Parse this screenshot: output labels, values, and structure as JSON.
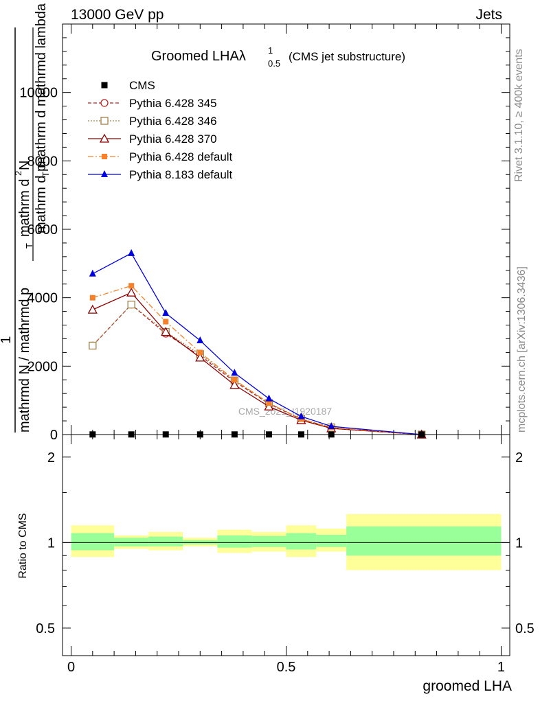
{
  "header": {
    "left": "13000 GeV pp",
    "right": "Jets"
  },
  "side": {
    "rivet": "Rivet 3.1.10, ≥ 400k events",
    "mcplots": "mcplots.cern.ch [arXiv:1306.3436]"
  },
  "plot": {
    "title_main": "Groomed LHAλ",
    "title_sup": "1",
    "title_sub": "0.5",
    "title_paren": "(CMS jet substructure)",
    "watermark": "CMS_2021_I1920187",
    "ylabel_num_top": "1",
    "ylabel_den_top": "mathrmd N / mathrmd p",
    "ylabel_den_top_sub": "T",
    "ylabel_num_bottom": "mathrm d",
    "ylabel_num_bottom_sup": "2",
    "ylabel_num_bottom_rest": "N",
    "ylabel_den_bottom": "mathrm d p",
    "ylabel_den_bottom_sub": "T",
    "ylabel_den_bottom_rest": "mathrm d mathrmd lambda",
    "ratio_ylabel": "Ratio to CMS",
    "xlabel": "groomed LHA"
  },
  "chart_data": {
    "type": "line",
    "xlim": [
      -0.02,
      1.02
    ],
    "ylim": [
      0,
      12000
    ],
    "yticks": [
      0,
      2000,
      4000,
      6000,
      8000,
      10000
    ],
    "ytick_labels": [
      "0",
      "2000",
      "4000",
      "6000",
      "8000",
      "10000"
    ],
    "x": [
      0.05,
      0.14,
      0.22,
      0.3,
      0.38,
      0.46,
      0.535,
      0.605,
      0.815
    ],
    "data": {
      "name": "CMS",
      "color": "#000000",
      "values": [
        4,
        4,
        4,
        4,
        4,
        4,
        4,
        4,
        0
      ],
      "marker": "square"
    },
    "series": [
      {
        "name": "Pythia 6.428 345",
        "color": "#b22222",
        "marker": "circle-open",
        "dash": "5,3",
        "values": [
          2600,
          3800,
          2950,
          2300,
          1550,
          900,
          450,
          200,
          0
        ]
      },
      {
        "name": "Pythia 6.428 346",
        "color": "#a0814a",
        "marker": "square-open",
        "dash": "2,2",
        "values": [
          2600,
          3800,
          3000,
          2350,
          1580,
          920,
          460,
          210,
          0
        ]
      },
      {
        "name": "Pythia 6.428 370",
        "color": "#8b0000",
        "marker": "triangle-open",
        "dash": "",
        "values": [
          3650,
          4150,
          3000,
          2250,
          1450,
          820,
          420,
          180,
          0
        ]
      },
      {
        "name": "Pythia 6.428 default",
        "color": "#f5822b",
        "marker": "square-filled",
        "dash": "8,3,2,3",
        "values": [
          4000,
          4350,
          3300,
          2400,
          1600,
          920,
          450,
          200,
          0
        ]
      },
      {
        "name": "Pythia 8.183 default",
        "color": "#0000dd",
        "marker": "triangle-filled",
        "dash": "",
        "values": [
          4700,
          5300,
          3550,
          2750,
          1800,
          1050,
          530,
          240,
          0
        ]
      }
    ],
    "ratio": {
      "ylim": [
        0.4,
        2.4
      ],
      "ytick_labels": [
        "0.5",
        "1",
        "2"
      ],
      "xticks": [
        0,
        0.5,
        1
      ],
      "xtick_labels": [
        "0",
        "0.5",
        "1"
      ],
      "bins": [
        0.0,
        0.1,
        0.18,
        0.26,
        0.34,
        0.42,
        0.5,
        0.57,
        0.64,
        1.0
      ],
      "yellow": [
        [
          0.89,
          1.15
        ],
        [
          0.95,
          1.06
        ],
        [
          0.94,
          1.09
        ],
        [
          0.97,
          1.04
        ],
        [
          0.92,
          1.11
        ],
        [
          0.93,
          1.09
        ],
        [
          0.89,
          1.15
        ],
        [
          0.93,
          1.12
        ],
        [
          0.8,
          1.26
        ]
      ],
      "green": [
        [
          0.94,
          1.08
        ],
        [
          0.97,
          1.04
        ],
        [
          0.97,
          1.05
        ],
        [
          0.985,
          1.02
        ],
        [
          0.96,
          1.06
        ],
        [
          0.965,
          1.055
        ],
        [
          0.945,
          1.08
        ],
        [
          0.965,
          1.065
        ],
        [
          0.9,
          1.14
        ]
      ]
    }
  }
}
